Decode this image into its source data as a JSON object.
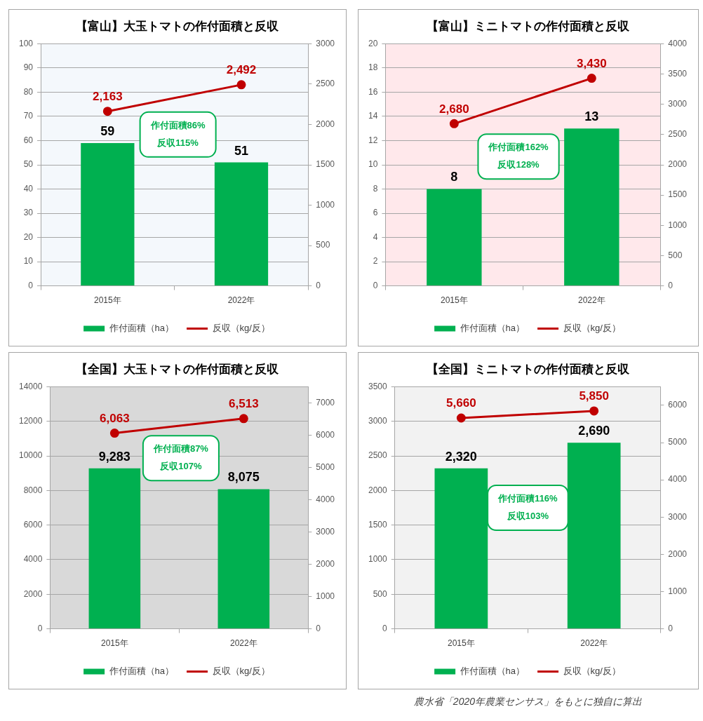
{
  "chart_data": [
    {
      "type": "bar",
      "title": "【富山】大玉トマトの作付面積と反収",
      "categories": [
        "2015年",
        "2022年"
      ],
      "series": [
        {
          "name": "作付面積（ha）",
          "color": "#00b050",
          "values": [
            59,
            51
          ],
          "value_labels": [
            "59",
            "51"
          ]
        },
        {
          "name": "反収（kg/反）",
          "type": "line",
          "axis": "y2",
          "color": "#c00000",
          "values": [
            2163,
            2492
          ],
          "value_labels": [
            "2,163",
            "2,492"
          ]
        }
      ],
      "ylim": [
        0,
        100
      ],
      "yticks": [
        0,
        10,
        20,
        30,
        40,
        50,
        60,
        70,
        80,
        90,
        100
      ],
      "y2lim": [
        0,
        3000
      ],
      "y2ticks": [
        0,
        500,
        1000,
        1500,
        2000,
        2500,
        3000
      ],
      "grid": "y",
      "legend": "bottom",
      "marker": "circle",
      "annotations": [
        "作付面積86%",
        "反収115%"
      ]
    },
    {
      "type": "bar",
      "title": "【富山】ミニトマトの作付面積と反収",
      "categories": [
        "2015年",
        "2022年"
      ],
      "series": [
        {
          "name": "作付面積（ha）",
          "color": "#00b050",
          "values": [
            8,
            13
          ],
          "value_labels": [
            "8",
            "13"
          ]
        },
        {
          "name": "反収（kg/反）",
          "type": "line",
          "axis": "y2",
          "color": "#c00000",
          "values": [
            2680,
            3430
          ],
          "value_labels": [
            "2,680",
            "3,430"
          ]
        }
      ],
      "ylim": [
        0,
        20
      ],
      "yticks": [
        0,
        2,
        4,
        6,
        8,
        10,
        12,
        14,
        16,
        18,
        20
      ],
      "y2lim": [
        0,
        4000
      ],
      "y2ticks": [
        0,
        500,
        1000,
        1500,
        2000,
        2500,
        3000,
        3500,
        4000
      ],
      "grid": "y",
      "legend": "bottom",
      "marker": "circle",
      "annotations": [
        "作付面積162%",
        "反収128%"
      ]
    },
    {
      "type": "bar",
      "title": "【全国】大玉トマトの作付面積と反収",
      "categories": [
        "2015年",
        "2022年"
      ],
      "series": [
        {
          "name": "作付面積（ha）",
          "color": "#00b050",
          "values": [
            9283,
            8075
          ],
          "value_labels": [
            "9,283",
            "8,075"
          ]
        },
        {
          "name": "反収（kg/反）",
          "type": "line",
          "axis": "y2",
          "color": "#c00000",
          "values": [
            6063,
            6513
          ],
          "value_labels": [
            "6,063",
            "6,513"
          ]
        }
      ],
      "ylim": [
        0,
        14000
      ],
      "yticks": [
        0,
        2000,
        4000,
        6000,
        8000,
        10000,
        12000,
        14000
      ],
      "y2lim": [
        0,
        7500
      ],
      "y2ticks": [
        0,
        1000,
        2000,
        3000,
        4000,
        5000,
        6000,
        7000
      ],
      "grid": "y",
      "legend": "bottom",
      "marker": "circle",
      "annotations": [
        "作付面積87%",
        "反収107%"
      ]
    },
    {
      "type": "bar",
      "title": "【全国】ミニトマトの作付面積と反収",
      "categories": [
        "2015年",
        "2022年"
      ],
      "series": [
        {
          "name": "作付面積（ha）",
          "color": "#00b050",
          "values": [
            2320,
            2690
          ],
          "value_labels": [
            "2,320",
            "2,690"
          ]
        },
        {
          "name": "反収（kg/反）",
          "type": "line",
          "axis": "y2",
          "color": "#c00000",
          "values": [
            5660,
            5850
          ],
          "value_labels": [
            "5,660",
            "5,850"
          ]
        }
      ],
      "ylim": [
        0,
        3500
      ],
      "yticks": [
        0,
        500,
        1000,
        1500,
        2000,
        2500,
        3000,
        3500
      ],
      "y2lim": [
        0,
        6500
      ],
      "y2ticks": [
        0,
        1000,
        2000,
        3000,
        4000,
        5000,
        6000
      ],
      "grid": "y",
      "legend": "bottom",
      "marker": "circle",
      "annotations": [
        "作付面積116%",
        "反収103%",
        "農水省「2020年農業センサス」をもとに独自に算出"
      ]
    }
  ]
}
